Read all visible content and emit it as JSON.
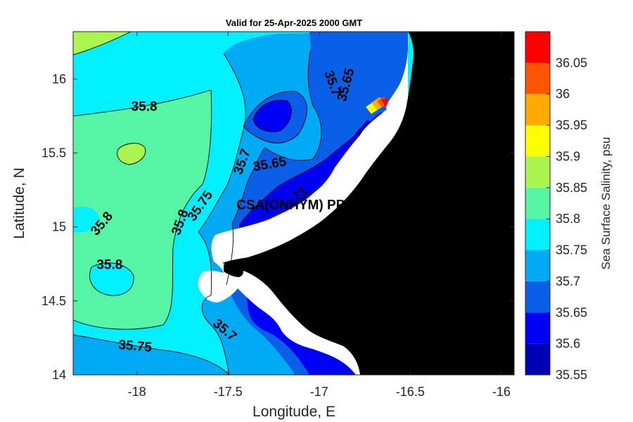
{
  "chart_data": {
    "type": "heatmap",
    "subtype": "filled-contour map",
    "title": "Valid for 25-Apr-2025 2000 GMT",
    "xlabel": "Longitude, E",
    "ylabel": "Latitude, N",
    "xlim": [
      -18.35,
      -15.93
    ],
    "ylim": [
      14.0,
      16.32
    ],
    "xticks": [
      -18,
      -17.5,
      -17,
      -16.5,
      -16
    ],
    "xtick_labels": [
      "-18",
      "-17.5",
      "-17",
      "-16.5",
      "-16"
    ],
    "yticks": [
      14,
      14.5,
      15,
      15.5,
      16
    ],
    "ytick_labels": [
      "14",
      "14.5",
      "15",
      "15.5",
      "16"
    ],
    "colorbar": {
      "label": "Sea Surface Salinity, psu",
      "min": 35.55,
      "max": 36.1,
      "ticks": [
        35.55,
        35.6,
        35.65,
        35.7,
        35.75,
        35.8,
        35.85,
        35.9,
        35.95,
        36,
        36.05
      ],
      "tick_labels": [
        "35.55",
        "35.6",
        "35.65",
        "35.7",
        "35.75",
        "35.8",
        "35.85",
        "35.9",
        "35.95",
        "36",
        "36.05"
      ],
      "levels": [
        {
          "from": 35.55,
          "to": 35.6,
          "color": "#0000b4"
        },
        {
          "from": 35.6,
          "to": 35.65,
          "color": "#0000f5"
        },
        {
          "from": 35.65,
          "to": 35.7,
          "color": "#0a5fe8"
        },
        {
          "from": 35.7,
          "to": 35.75,
          "color": "#00aaf5"
        },
        {
          "from": 35.75,
          "to": 35.8,
          "color": "#00f0ff"
        },
        {
          "from": 35.8,
          "to": 35.85,
          "color": "#55f5a5"
        },
        {
          "from": 35.85,
          "to": 35.9,
          "color": "#aaf550"
        },
        {
          "from": 35.9,
          "to": 35.95,
          "color": "#ffff00"
        },
        {
          "from": 35.95,
          "to": 36.0,
          "color": "#ffaa00"
        },
        {
          "from": 36.0,
          "to": 36.05,
          "color": "#ff5500"
        },
        {
          "from": 36.05,
          "to": 36.1,
          "color": "#ff0000"
        }
      ]
    },
    "contour_labels": [
      {
        "text": "35.8",
        "lon": -17.96,
        "lat": 15.81,
        "angle": 0
      },
      {
        "text": "35.8",
        "lon": -18.19,
        "lat": 15.02,
        "angle": -50
      },
      {
        "text": "35.8",
        "lon": -18.15,
        "lat": 14.74,
        "angle": 0
      },
      {
        "text": "35.8",
        "lon": -17.76,
        "lat": 15.03,
        "angle": -70
      },
      {
        "text": "35.75",
        "lon": -17.65,
        "lat": 15.14,
        "angle": -55
      },
      {
        "text": "35.75",
        "lon": -18.01,
        "lat": 14.19,
        "angle": 5
      },
      {
        "text": "35.7",
        "lon": -17.42,
        "lat": 15.44,
        "angle": -70
      },
      {
        "text": "35.65",
        "lon": -17.27,
        "lat": 15.42,
        "angle": -10
      },
      {
        "text": "35.7",
        "lon": -16.93,
        "lat": 15.97,
        "angle": 70
      },
      {
        "text": "35.65",
        "lon": -16.85,
        "lat": 15.96,
        "angle": -75
      },
      {
        "text": "35.7",
        "lon": -17.52,
        "lat": 14.3,
        "angle": 40
      }
    ],
    "station": {
      "name": "CSA(ONHYM) PPL E",
      "lon": -17.1,
      "lat": 15.22,
      "marker": "star"
    },
    "land_color": "#000000",
    "nodata_color": "#ffffff"
  }
}
